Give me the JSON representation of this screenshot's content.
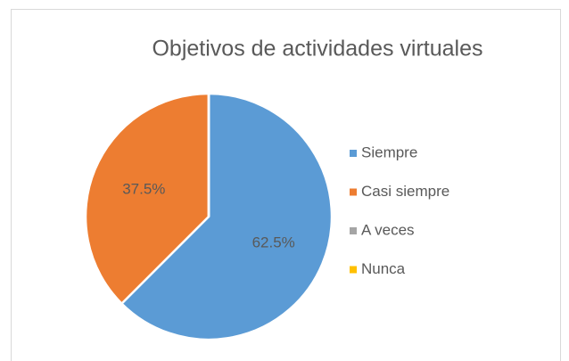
{
  "chart_data": {
    "type": "pie",
    "title": "Objetivos de actividades virtuales",
    "categories": [
      "Siempre",
      "Casi siempre",
      "A veces",
      "Nunca"
    ],
    "values": [
      62.5,
      37.5,
      0,
      0
    ],
    "value_labels": [
      "62.5%",
      "37.5%",
      null,
      null
    ],
    "colors": [
      "#5b9bd5",
      "#ed7d31",
      "#a5a5a5",
      "#ffc000"
    ],
    "legend": "right"
  }
}
